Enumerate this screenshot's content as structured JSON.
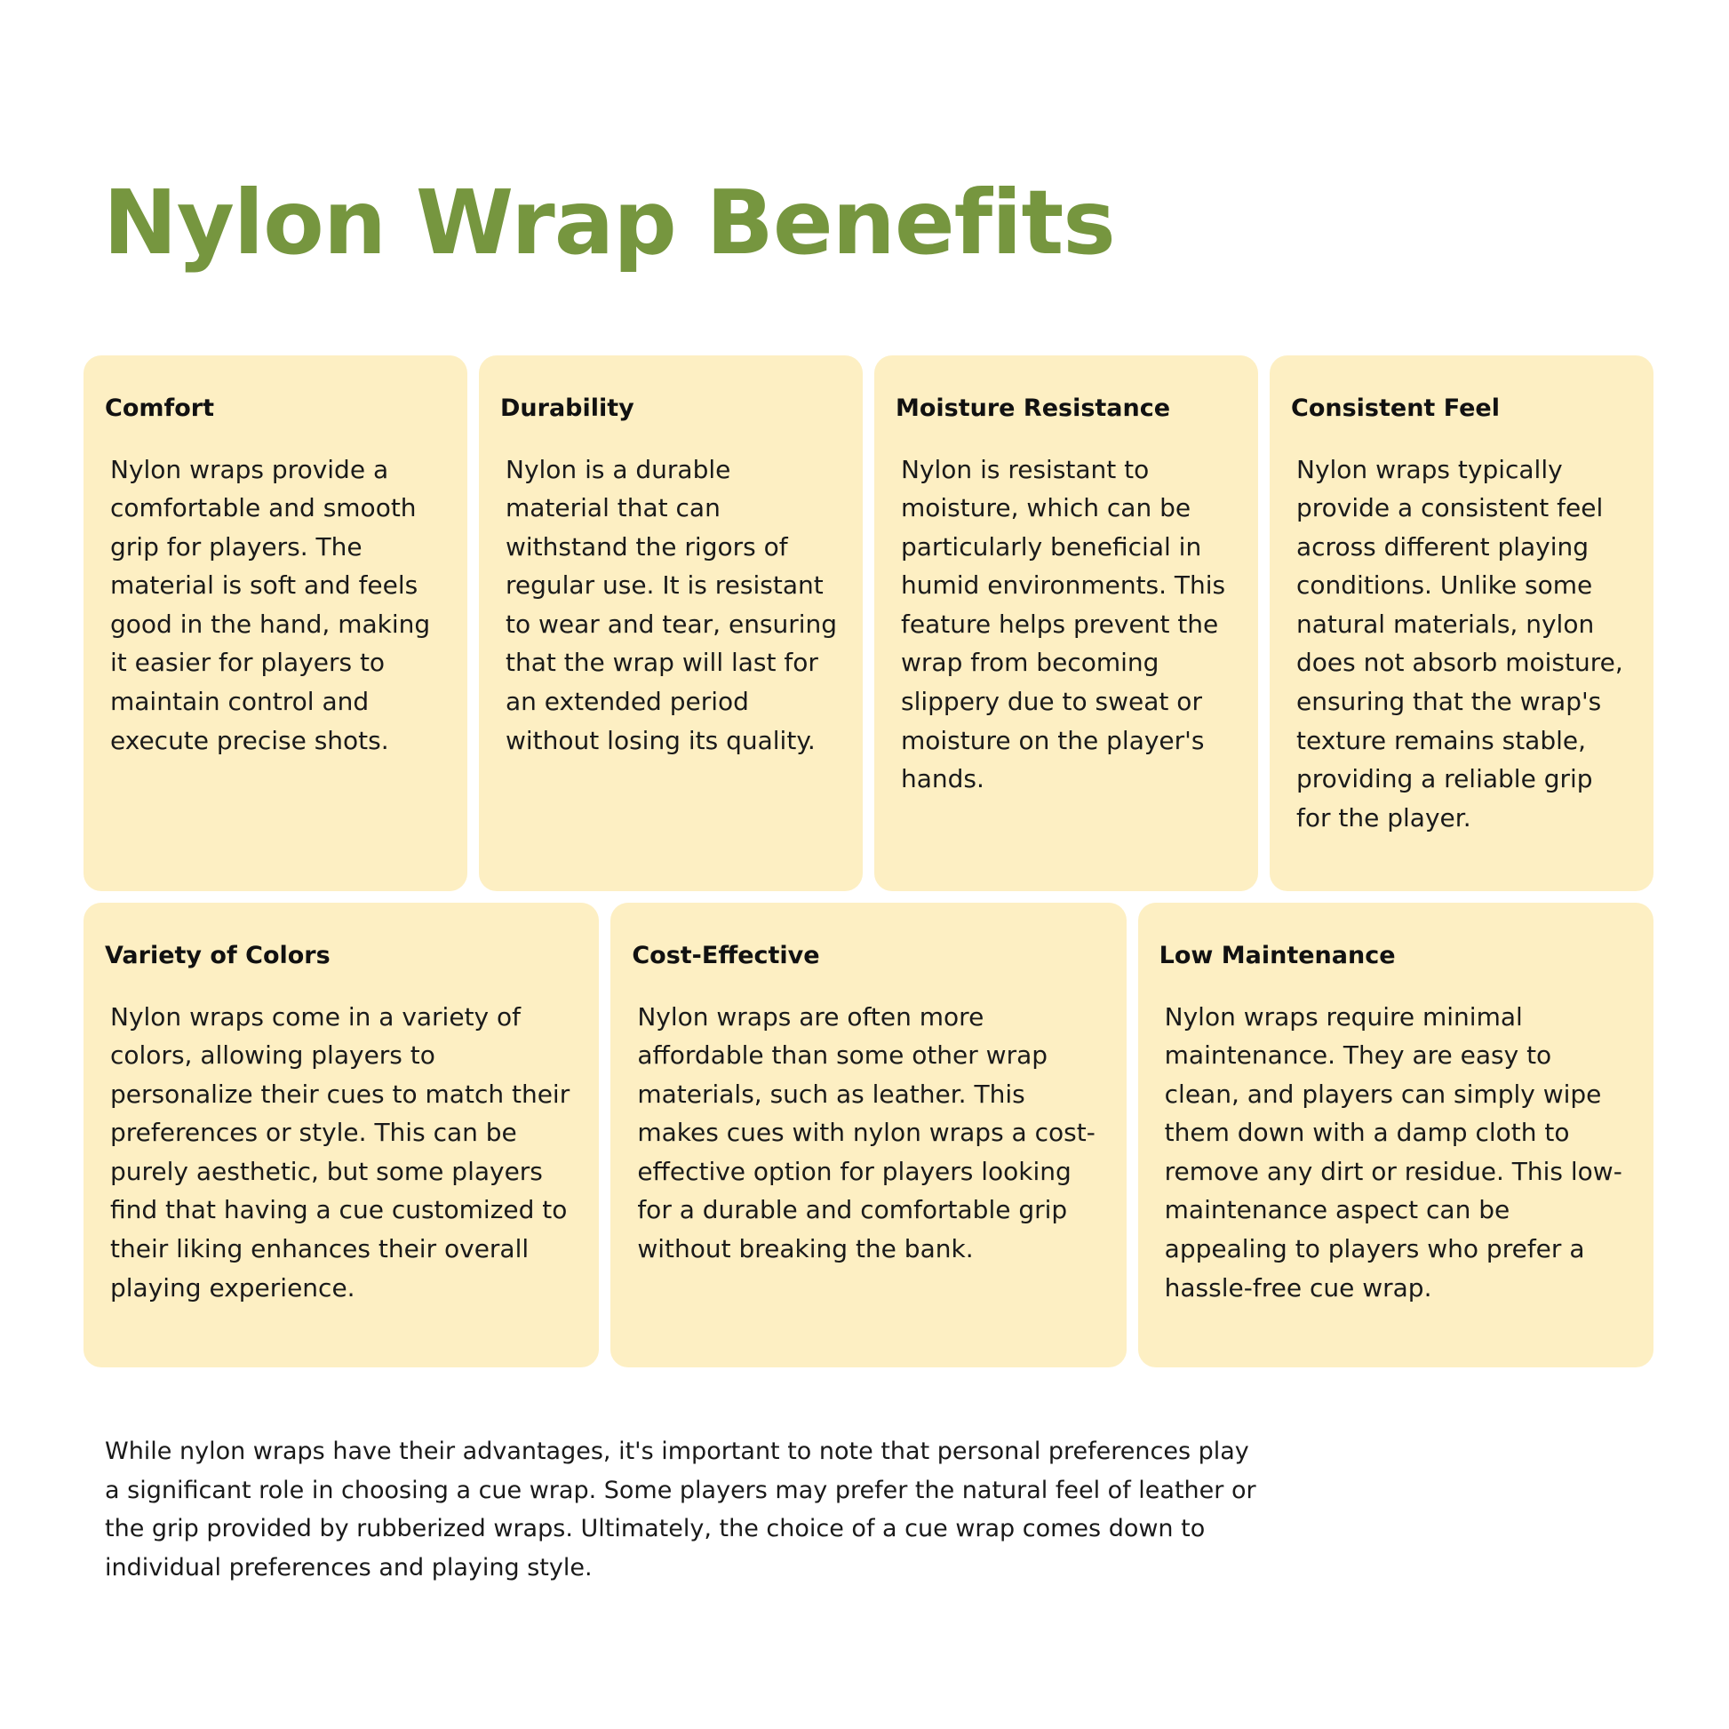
{
  "title": "Nylon Wrap Benefits",
  "colors": {
    "title": "#76963f",
    "card_background": "#fdefc3"
  },
  "cards_row1": [
    {
      "heading": "Comfort",
      "body": "Nylon wraps provide a comfortable and smooth grip for players. The material is soft and feels good in the hand, making it easier for players to maintain control and execute precise shots."
    },
    {
      "heading": "Durability",
      "body": "Nylon is a durable material that can withstand the rigors of regular use. It is resistant to wear and tear, ensuring that the wrap will last for an extended period without losing its quality."
    },
    {
      "heading": "Moisture Resistance",
      "body": "Nylon is resistant to moisture, which can be particularly beneficial in humid environments. This feature helps prevent the wrap from becoming slippery due to sweat or moisture on the player's hands."
    },
    {
      "heading": "Consistent Feel",
      "body": "Nylon wraps typically provide a consistent feel across different playing conditions. Unlike some natural materials, nylon does not absorb moisture, ensuring that the wrap's texture remains stable, providing a reliable grip for the player."
    }
  ],
  "cards_row2": [
    {
      "heading": "Variety of Colors",
      "body": "Nylon wraps come in a variety of colors, allowing players to personalize their cues to match their preferences or style. This can be purely aesthetic, but some players find that having a cue customized to their liking enhances their overall playing experience."
    },
    {
      "heading": "Cost-Effective",
      "body": "Nylon wraps are often more affordable than some other wrap materials, such as leather. This makes cues with nylon wraps a cost-effective option for players looking for a durable and comfortable grip without breaking the bank."
    },
    {
      "heading": "Low Maintenance",
      "body": "Nylon wraps require minimal maintenance. They are easy to clean, and players can simply wipe them down with a damp cloth to remove any dirt or residue. This low-maintenance aspect can be appealing to players who prefer a hassle-free cue wrap."
    }
  ],
  "footer": "While nylon wraps have their advantages, it's important to note that personal preferences play a significant role in choosing a cue wrap. Some players may prefer the natural feel of leather or the grip provided by rubberized wraps. Ultimately, the choice of a cue wrap comes down to individual preferences and playing style."
}
